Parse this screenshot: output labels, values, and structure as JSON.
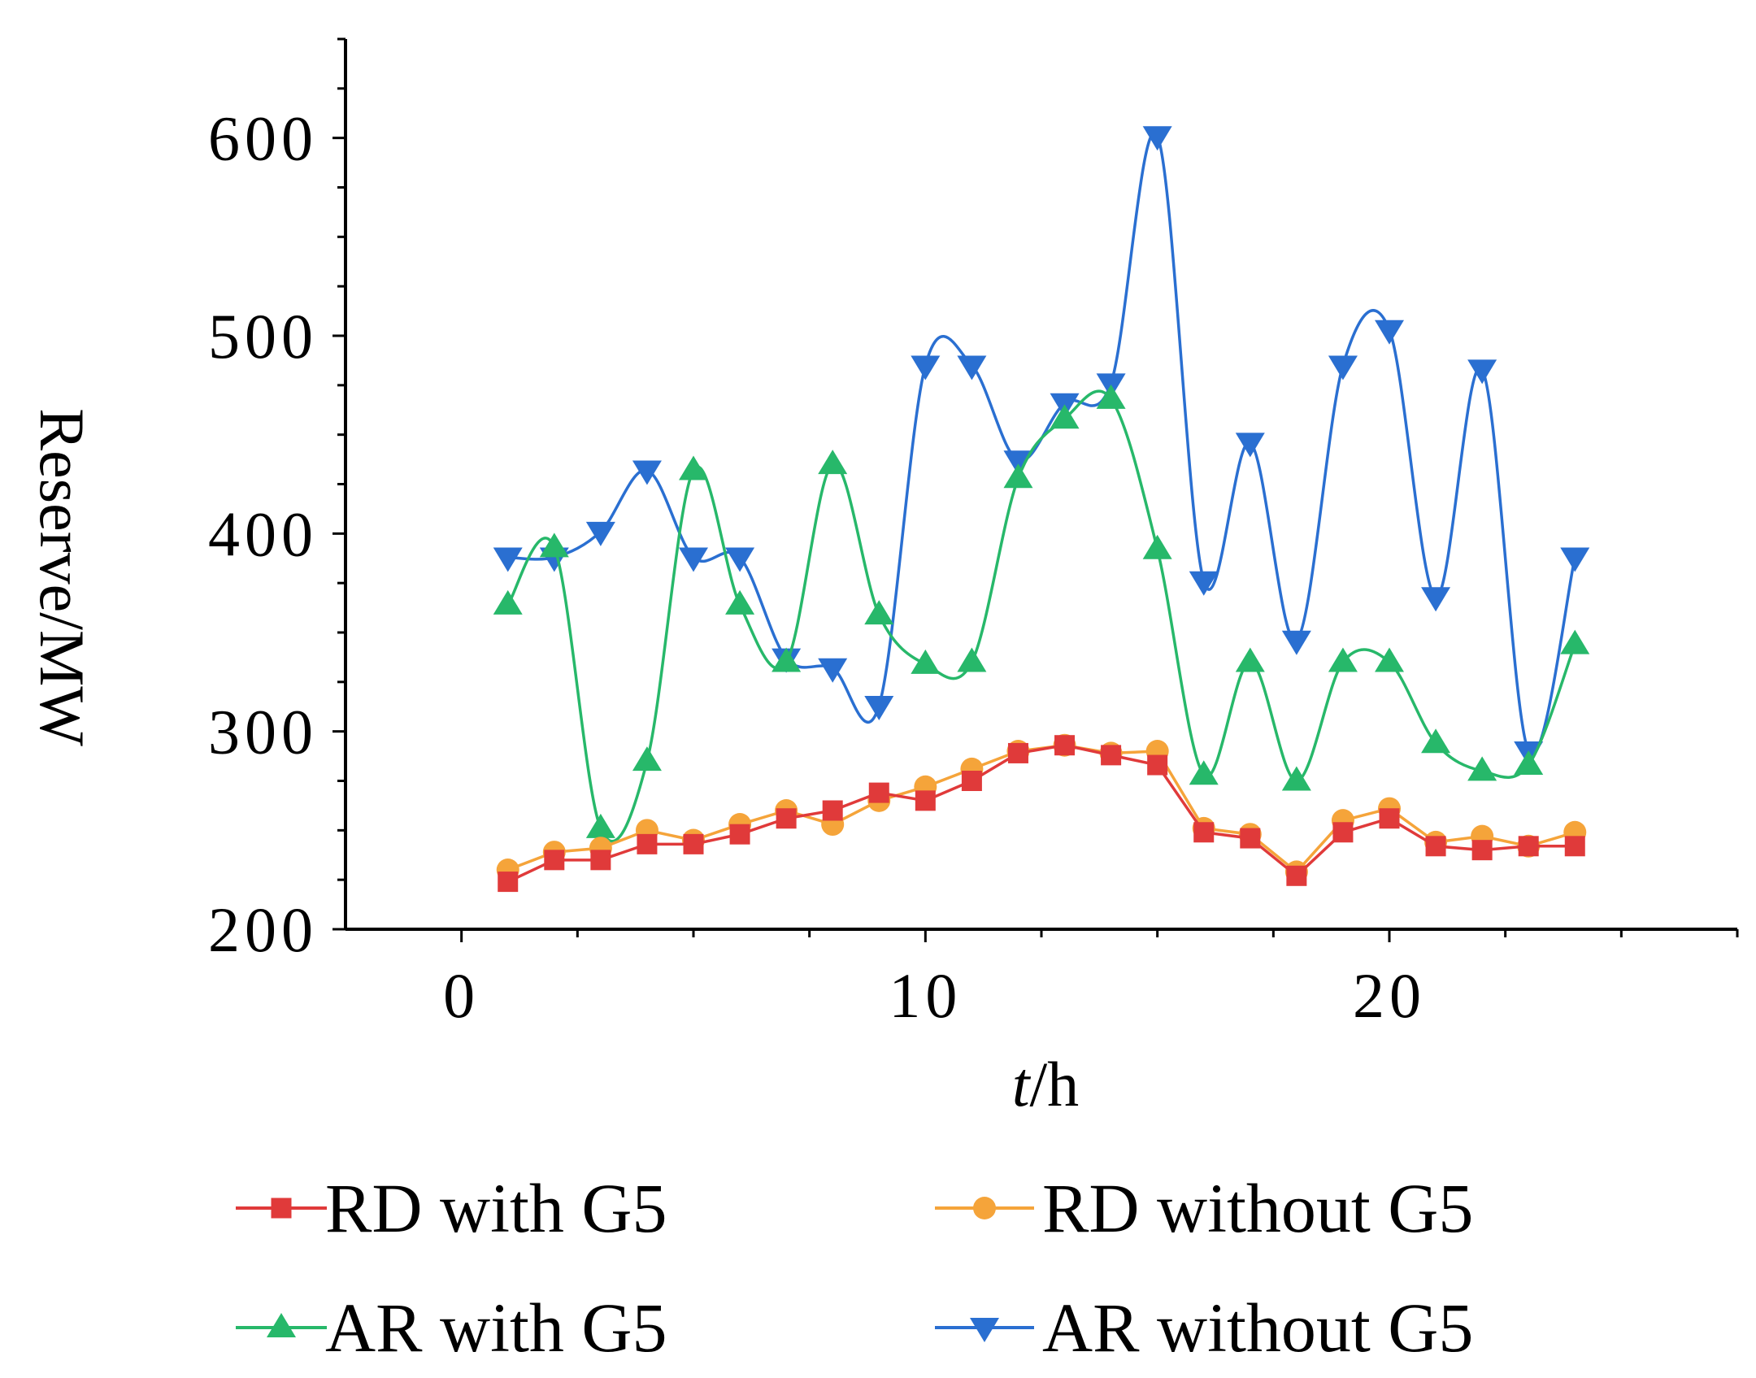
{
  "chart_data": {
    "type": "line",
    "title": "",
    "xlabel": "/h",
    "xlabel_italic_part": "t",
    "ylabel": "Reserve/MW",
    "xlim": [
      -2.5,
      27.5
    ],
    "ylim": [
      200,
      650
    ],
    "x_ticks": [
      0,
      10,
      20
    ],
    "y_ticks": [
      200,
      300,
      400,
      500,
      600
    ],
    "x_tick_labels": [
      "0",
      "10",
      "20"
    ],
    "y_tick_labels": [
      "200",
      "300",
      "400",
      "500",
      "600"
    ],
    "x": [
      1,
      2,
      3,
      4,
      5,
      6,
      7,
      8,
      9,
      10,
      11,
      12,
      13,
      14,
      15,
      16,
      17,
      18,
      19,
      20,
      21,
      22,
      23,
      24
    ],
    "legend_position": "bottom",
    "series": [
      {
        "name": "RD with G5",
        "color": "#e03a3a",
        "marker": "square",
        "smooth": false,
        "values": [
          224,
          235,
          235,
          243,
          243,
          248,
          256,
          260,
          269,
          265,
          275,
          289,
          293,
          288,
          283,
          249,
          246,
          227,
          249,
          256,
          242,
          240,
          242,
          242
        ]
      },
      {
        "name": "RD without G5",
        "color": "#f5a43a",
        "marker": "circle",
        "smooth": false,
        "values": [
          230,
          239,
          241,
          250,
          245,
          253,
          260,
          253,
          265,
          272,
          281,
          290,
          293,
          289,
          290,
          251,
          248,
          229,
          255,
          261,
          244,
          247,
          242,
          249
        ]
      },
      {
        "name": "AR with G5",
        "color": "#27b86a",
        "marker": "triangle-up",
        "smooth": true,
        "values": [
          364,
          393,
          251,
          285,
          432,
          364,
          335,
          435,
          359,
          334,
          335,
          428,
          458,
          468,
          392,
          278,
          335,
          275,
          335,
          335,
          294,
          280,
          283,
          344
        ]
      },
      {
        "name": "AR without G5",
        "color": "#2a6fd1",
        "marker": "triangle-down",
        "smooth": true,
        "values": [
          388,
          388,
          401,
          432,
          388,
          388,
          337,
          332,
          313,
          485,
          485,
          437,
          466,
          476,
          601,
          376,
          446,
          346,
          485,
          503,
          368,
          483,
          290,
          388
        ]
      }
    ]
  }
}
